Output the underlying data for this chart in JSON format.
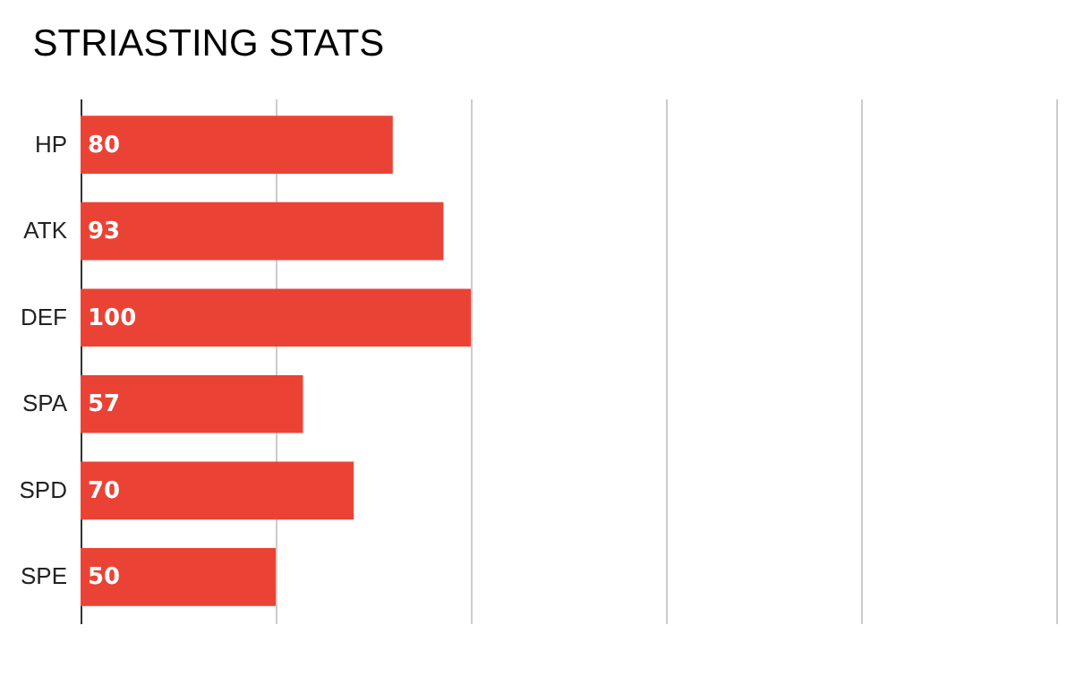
{
  "chart_data": {
    "type": "bar",
    "orientation": "horizontal",
    "title": "STRIASTING STATS",
    "categories": [
      "HP",
      "ATK",
      "DEF",
      "SPA",
      "SPD",
      "SPE"
    ],
    "values": [
      80,
      93,
      100,
      57,
      70,
      50
    ],
    "color": "#ea4335",
    "data_labels": true,
    "xlim": [
      0,
      250
    ],
    "xticks": [
      {
        "value": 0,
        "label": null
      },
      {
        "value": 50,
        "label": null
      },
      {
        "value": 100,
        "label": null
      },
      {
        "value": 150,
        "label": null
      },
      {
        "value": 200,
        "label": null
      },
      {
        "value": 250,
        "label": null
      }
    ],
    "grid": "x",
    "tick_labels": "y"
  }
}
